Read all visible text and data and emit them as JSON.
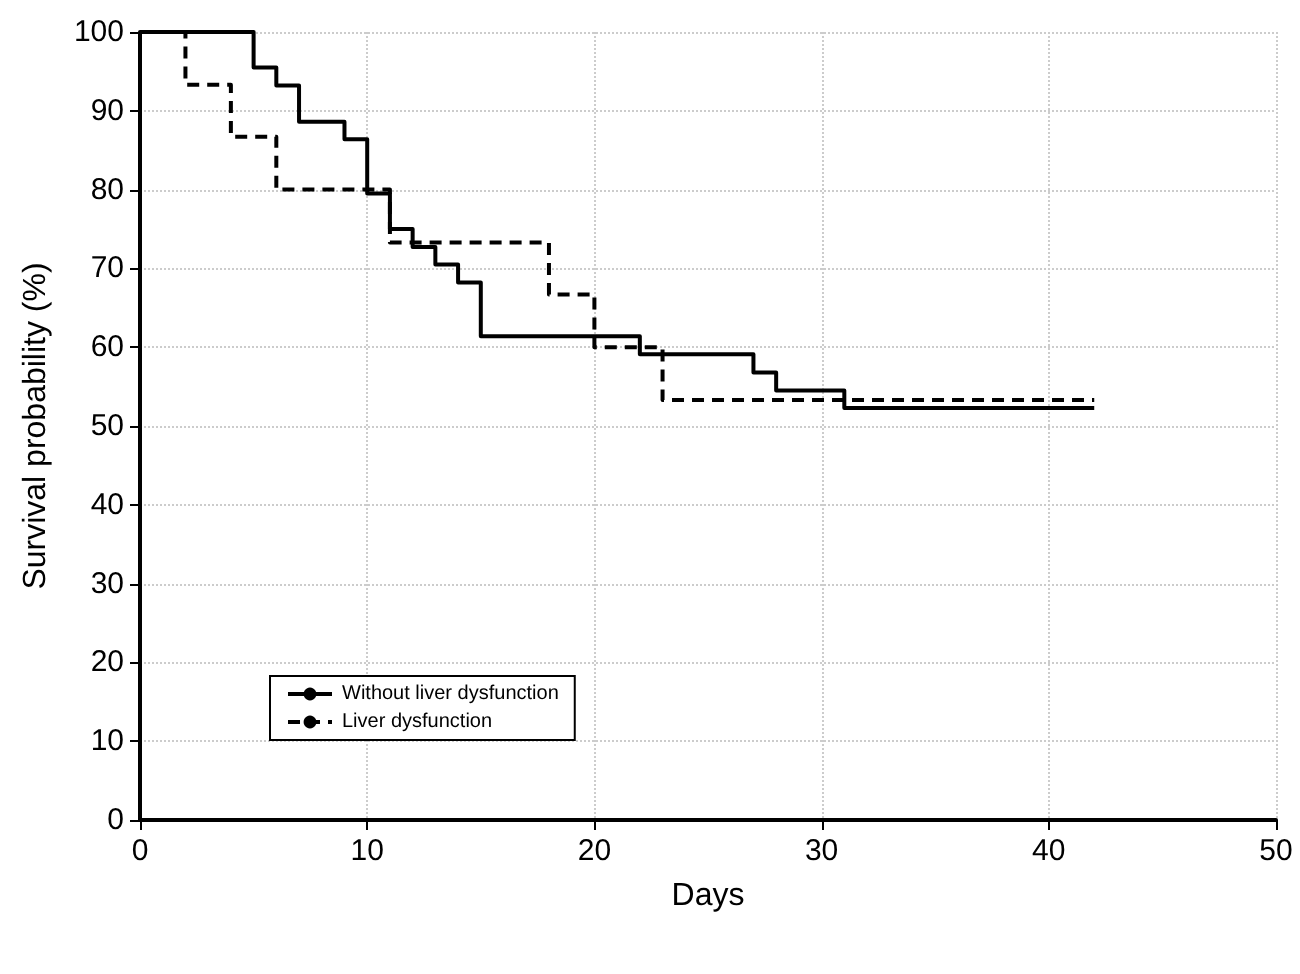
{
  "chart_data": {
    "type": "step",
    "xlabel": "Days",
    "ylabel": "Survival probability (%)",
    "xlim": [
      0,
      50
    ],
    "xticks": [
      0,
      10,
      20,
      30,
      40,
      50
    ],
    "ylim": [
      0,
      100
    ],
    "yticks": [
      0,
      10,
      20,
      30,
      40,
      50,
      60,
      70,
      80,
      90,
      100
    ],
    "grid": true,
    "legend": "bottom left",
    "marker": "none",
    "series": [
      {
        "name": "Without liver dysfunction",
        "color": "#000000",
        "line_style": "solid",
        "x": [
          0,
          5,
          6,
          7,
          9,
          10,
          11,
          12,
          13,
          14,
          15,
          22,
          27,
          28,
          31,
          42
        ],
        "values": [
          100,
          95.5,
          93.2,
          88.6,
          86.4,
          79.5,
          75,
          72.7,
          70.5,
          68.2,
          61.4,
          59.1,
          56.8,
          54.5,
          52.3,
          52.3
        ]
      },
      {
        "name": "Liver dysfunction",
        "color": "#000000",
        "line_style": "dashed",
        "x": [
          0,
          2,
          4,
          6,
          11,
          18,
          20,
          23,
          42
        ],
        "values": [
          100,
          93.3,
          86.7,
          80,
          73.3,
          66.7,
          60,
          53.3,
          53.3
        ]
      }
    ]
  }
}
